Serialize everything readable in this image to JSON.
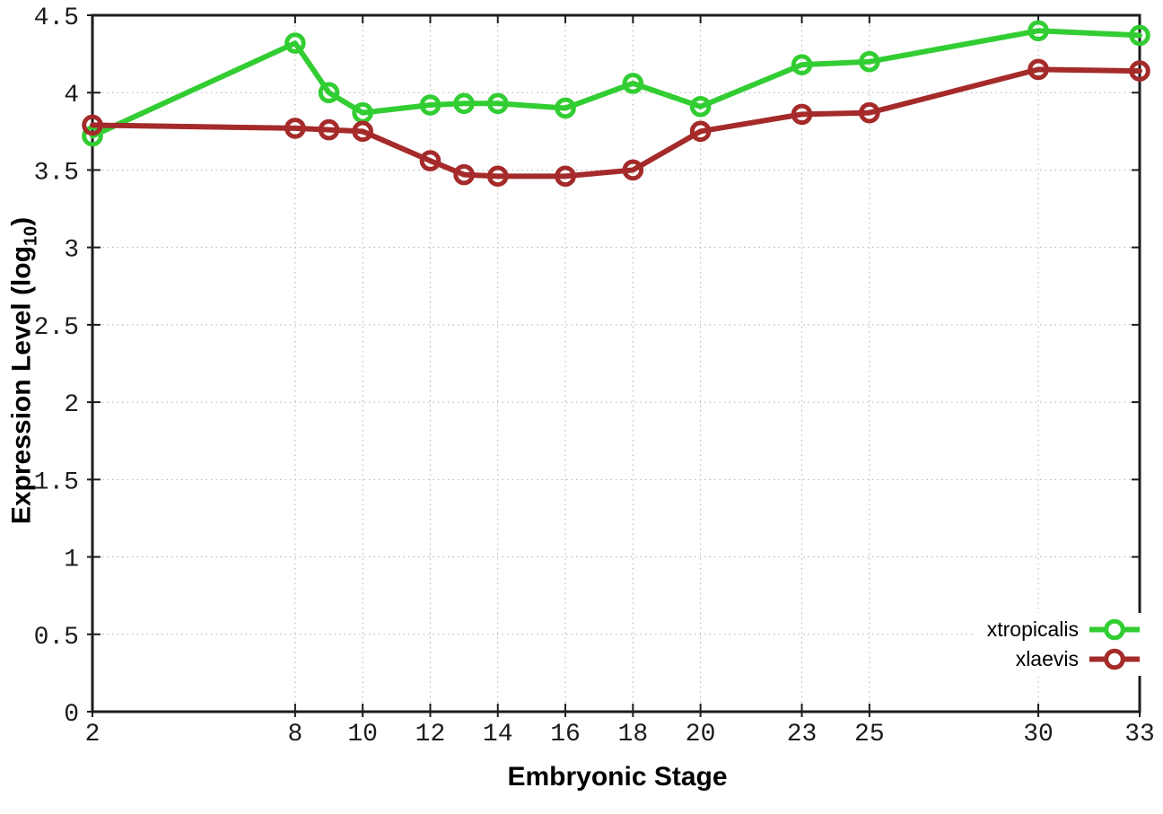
{
  "chart_data": {
    "type": "line",
    "title": "",
    "xlabel": "Embryonic Stage",
    "ylabel": "Expression Level (log10)",
    "ylabel_parts": {
      "prefix": "Expression Level (log",
      "sub": "10",
      "suffix": ")"
    },
    "x": [
      2,
      8,
      9,
      10,
      12,
      13,
      14,
      16,
      18,
      20,
      23,
      25,
      30,
      33
    ],
    "series": [
      {
        "name": "xtropicalis",
        "color": "#32cd32",
        "values": [
          3.72,
          4.32,
          4.0,
          3.87,
          3.92,
          3.93,
          3.93,
          3.9,
          4.06,
          3.91,
          4.18,
          4.2,
          4.4,
          4.37
        ]
      },
      {
        "name": "xlaevis",
        "color": "#a52a2a",
        "values": [
          3.79,
          3.77,
          3.76,
          3.75,
          3.56,
          3.47,
          3.46,
          3.46,
          3.5,
          3.75,
          3.86,
          3.87,
          4.15,
          4.14
        ]
      }
    ],
    "xlim": [
      2,
      33
    ],
    "ylim": [
      0,
      4.5
    ],
    "xticks": {
      "values": [
        2,
        8,
        10,
        12,
        14,
        16,
        18,
        20,
        23,
        25,
        30,
        33
      ],
      "labels": [
        "2",
        "8",
        "10",
        "12",
        "14",
        "16",
        "18",
        "20",
        "23",
        "25",
        "30",
        "33"
      ]
    },
    "yticks": {
      "values": [
        0,
        0.5,
        1,
        1.5,
        2,
        2.5,
        3,
        3.5,
        4,
        4.5
      ],
      "labels": [
        "0",
        "0.5",
        "1",
        "1.5",
        "2",
        "2.5",
        "3",
        "3.5",
        "4",
        "4.5"
      ]
    },
    "grid": true,
    "legend_position": "bottom-right",
    "marker": "open-circle",
    "line_width": 6
  }
}
